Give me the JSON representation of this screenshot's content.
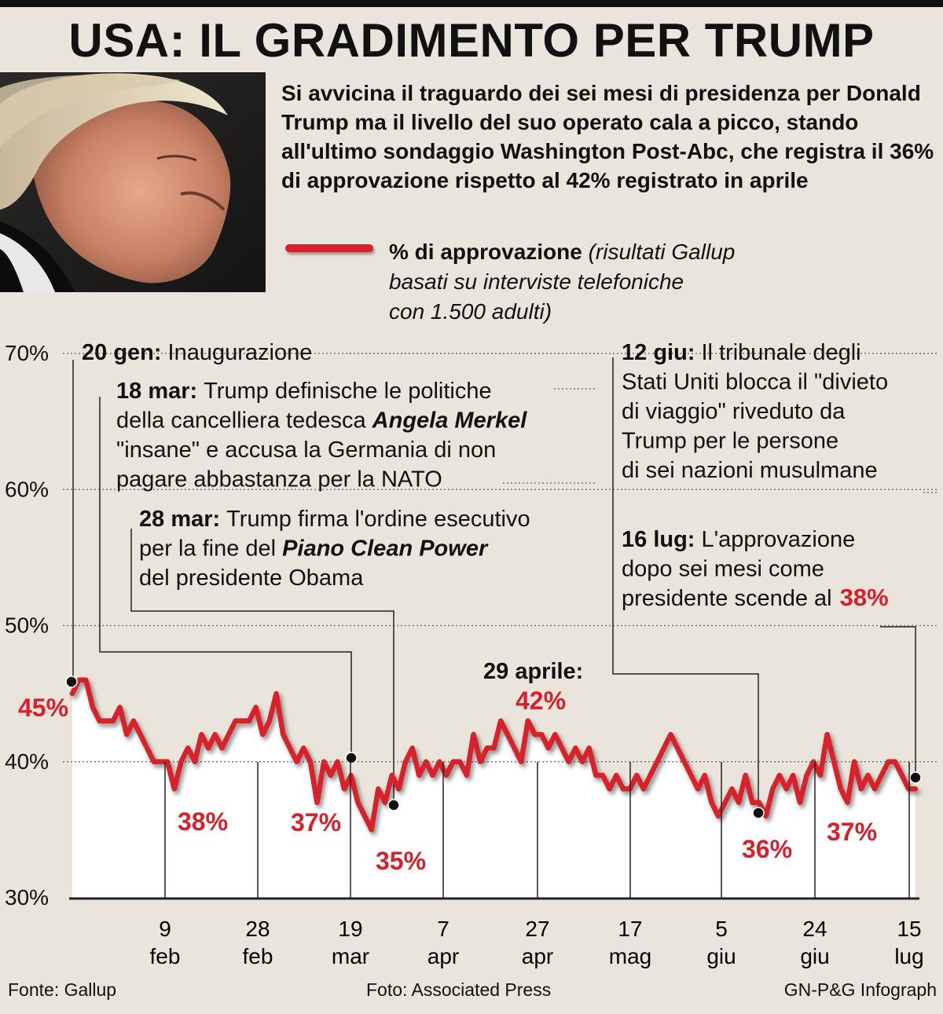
{
  "title": "USA: IL GRADIMENTO PER TRUMP",
  "photo_icon": "trump-portrait-photo",
  "intro": "Si avvicina il traguardo dei sei mesi di presidenza per Donald Trump ma il livello del suo operato cala a picco, stando all'ultimo sondaggio Washington Post-Abc, che registra il 36% di approvazione rispetto al 42% registrato in aprile",
  "legend": {
    "label": "% di approvazione",
    "note_lines": [
      "(risultati Gallup",
      "basati su interviste telefoniche",
      "con 1.500 adulti)"
    ],
    "color": "#d7202b"
  },
  "annotations": [
    {
      "date": "20 gen:",
      "lines": [
        "Inaugurazione"
      ]
    },
    {
      "date": "18 mar:",
      "lines": [
        "Trump definische le politiche",
        "della cancelliera tedesca |Angela Merkel",
        "\"insane\" e accusa la Germania di non",
        "pagare abbastanza per la NATO"
      ]
    },
    {
      "date": "28 mar:",
      "lines": [
        "Trump firma l'ordine esecutivo",
        "per la fine del |Piano Clean Power",
        "del presidente Obama"
      ]
    },
    {
      "date": "12 giu:",
      "lines": [
        "Il tribunale degli",
        "Stati Uniti blocca il \"divieto",
        "di viaggio\" riveduto da",
        "Trump per le persone",
        "di sei nazioni musulmane"
      ]
    },
    {
      "date": "16 lug:",
      "lines": [
        "L'approvazione",
        "dopo sei mesi come",
        "presidente scende al"
      ],
      "value": "38%"
    },
    {
      "date": "29 aprile:",
      "lines": []
    }
  ],
  "chart_data": {
    "type": "line",
    "series": [
      {
        "values": [
          45,
          46,
          46,
          44,
          43,
          43,
          43,
          44,
          42,
          43,
          42,
          41,
          40,
          40,
          40,
          38,
          40,
          41,
          40,
          42,
          41,
          42,
          41,
          42,
          43,
          43,
          43,
          44,
          42,
          43,
          45,
          42,
          41,
          40,
          41,
          40,
          37,
          40,
          39,
          40,
          38,
          39,
          37,
          36,
          35,
          38,
          37,
          39,
          38,
          40,
          41,
          39,
          40,
          39,
          40,
          39,
          40,
          40,
          39,
          42,
          40,
          41,
          41,
          43,
          42,
          41,
          40,
          43,
          42,
          42,
          41,
          42,
          41,
          40,
          41,
          40,
          41,
          39,
          39,
          38,
          39,
          38,
          38,
          39,
          38,
          39,
          40,
          41,
          42,
          41,
          40,
          39,
          38,
          39,
          37,
          36,
          37,
          38,
          37,
          39,
          37,
          37,
          36,
          38,
          39,
          38,
          39,
          37,
          39,
          40,
          39,
          42,
          40,
          38,
          37,
          40,
          38,
          39,
          38,
          39,
          40,
          40,
          39,
          38,
          38
        ]
      }
    ],
    "y_ticks": [
      "70%",
      "60%",
      "50%",
      "40%",
      "30%"
    ],
    "ylim": [
      30,
      70
    ],
    "x_ticks": [
      {
        "day": "9",
        "month": "feb"
      },
      {
        "day": "28",
        "month": "feb"
      },
      {
        "day": "19",
        "month": "mar"
      },
      {
        "day": "7",
        "month": "apr"
      },
      {
        "day": "27",
        "month": "apr"
      },
      {
        "day": "17",
        "month": "mag"
      },
      {
        "day": "5",
        "month": "giu"
      },
      {
        "day": "24",
        "month": "giu"
      },
      {
        "day": "15",
        "month": "lug"
      }
    ],
    "data_labels": [
      "45%",
      "38%",
      "37%",
      "35%",
      "42%",
      "36%",
      "37%"
    ],
    "grid": true
  },
  "footer": {
    "source": "Fonte: Gallup",
    "photo": "Foto: Associated Press",
    "credit": "GN-P&G Infograph"
  }
}
